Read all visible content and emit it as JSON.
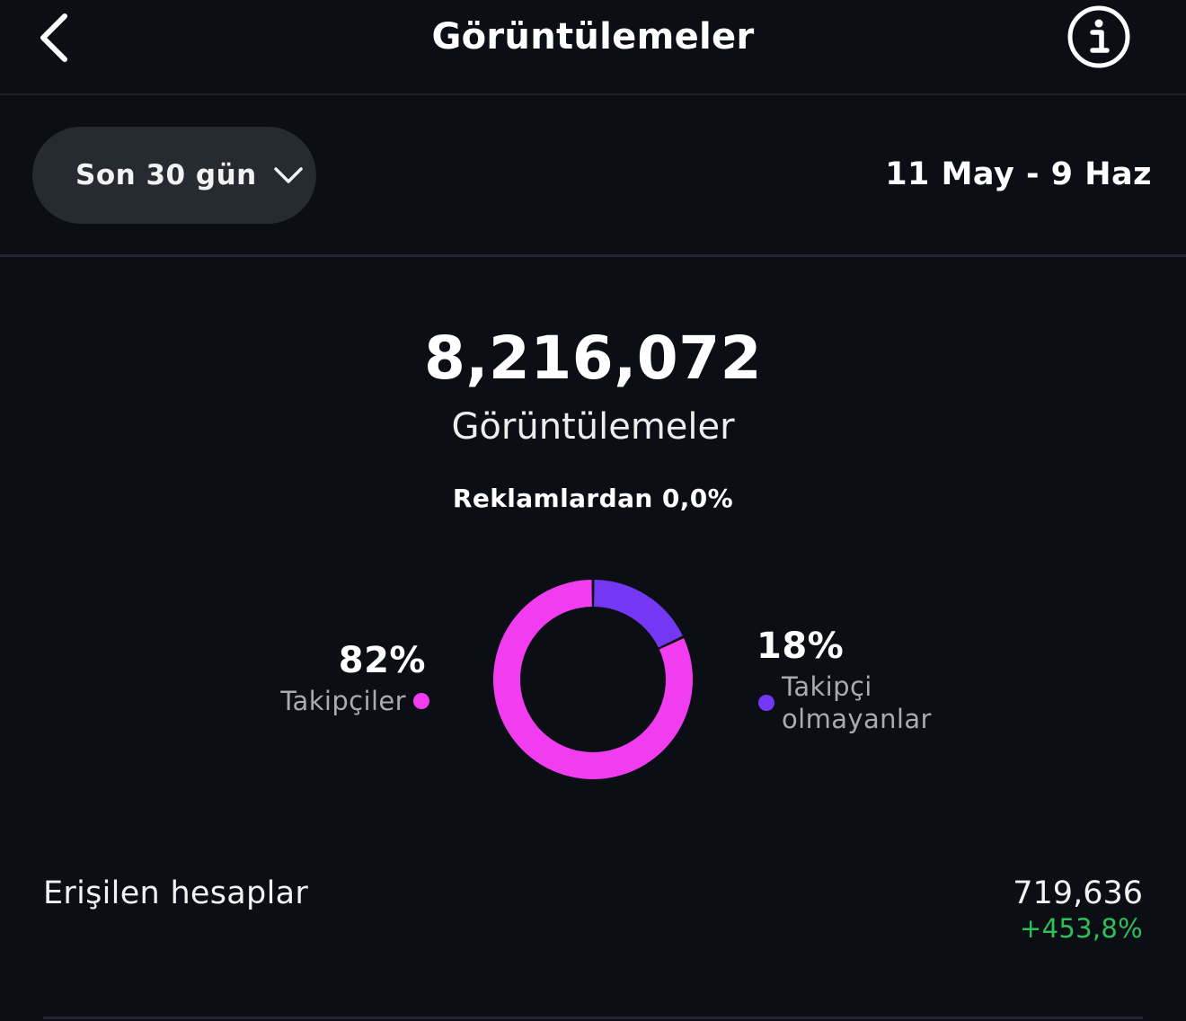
{
  "header": {
    "title": "Görüntülemeler",
    "back_icon": "chevron-left-icon",
    "info_icon": "info-icon"
  },
  "filter": {
    "range_label": "Son 30 gün",
    "range_icon": "chevron-down-icon",
    "date_range": "11 May - 9 Haz"
  },
  "summary": {
    "total": "8,216,072",
    "label": "Görüntülemeler",
    "ads_note": "Reklamlardan 0,0%"
  },
  "chart_data": {
    "type": "pie",
    "categories": [
      "Takipçiler",
      "Takipçi olmayanlar"
    ],
    "values": [
      82,
      18
    ],
    "labels": [
      "82%",
      "18%"
    ],
    "colors": [
      "#f23cf0",
      "#7438f5"
    ]
  },
  "legend": {
    "followers": {
      "percent": "82%",
      "name": "Takipçiler"
    },
    "non_followers": {
      "percent": "18%",
      "name": "Takipçi olmayanlar"
    }
  },
  "reach": {
    "label": "Erişilen hesaplar",
    "value": "719,636",
    "change": "+453,8%",
    "change_color": "#2fbf5b"
  }
}
